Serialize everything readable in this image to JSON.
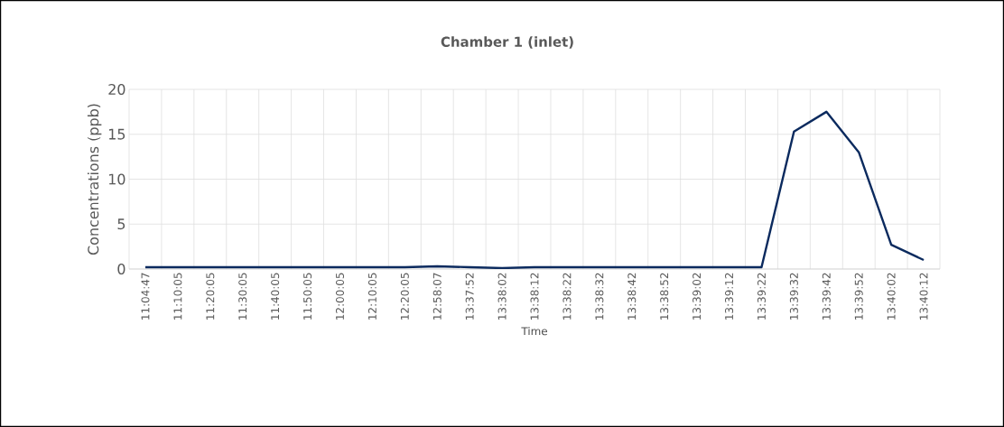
{
  "chart_data": {
    "type": "line",
    "title": "Chamber 1 (inlet)",
    "xlabel": "Time",
    "ylabel": "Concentrations (ppb)",
    "categories": [
      "11:04:47",
      "11:10:05",
      "11:20:05",
      "11:30:05",
      "11:40:05",
      "11:50:05",
      "12:00:05",
      "12:10:05",
      "12:20:05",
      "12:58:07",
      "13:37:52",
      "13:38:02",
      "13:38:12",
      "13:38:22",
      "13:38:32",
      "13:38:42",
      "13:38:52",
      "13:39:02",
      "13:39:12",
      "13:39:22",
      "13:39:32",
      "13:39:42",
      "13:39:52",
      "13:40:02",
      "13:40:12"
    ],
    "values": [
      0.2,
      0.2,
      0.2,
      0.2,
      0.2,
      0.2,
      0.2,
      0.2,
      0.2,
      0.3,
      0.2,
      0.1,
      0.2,
      0.2,
      0.2,
      0.2,
      0.2,
      0.2,
      0.2,
      0.2,
      15.3,
      17.5,
      13.0,
      2.7,
      1.0
    ],
    "color": "#0b2a5e",
    "ylim": [
      0,
      20
    ],
    "yticks": [
      0,
      5,
      10,
      15,
      20
    ],
    "grid": true,
    "marker": "none",
    "line_style": "solid"
  }
}
